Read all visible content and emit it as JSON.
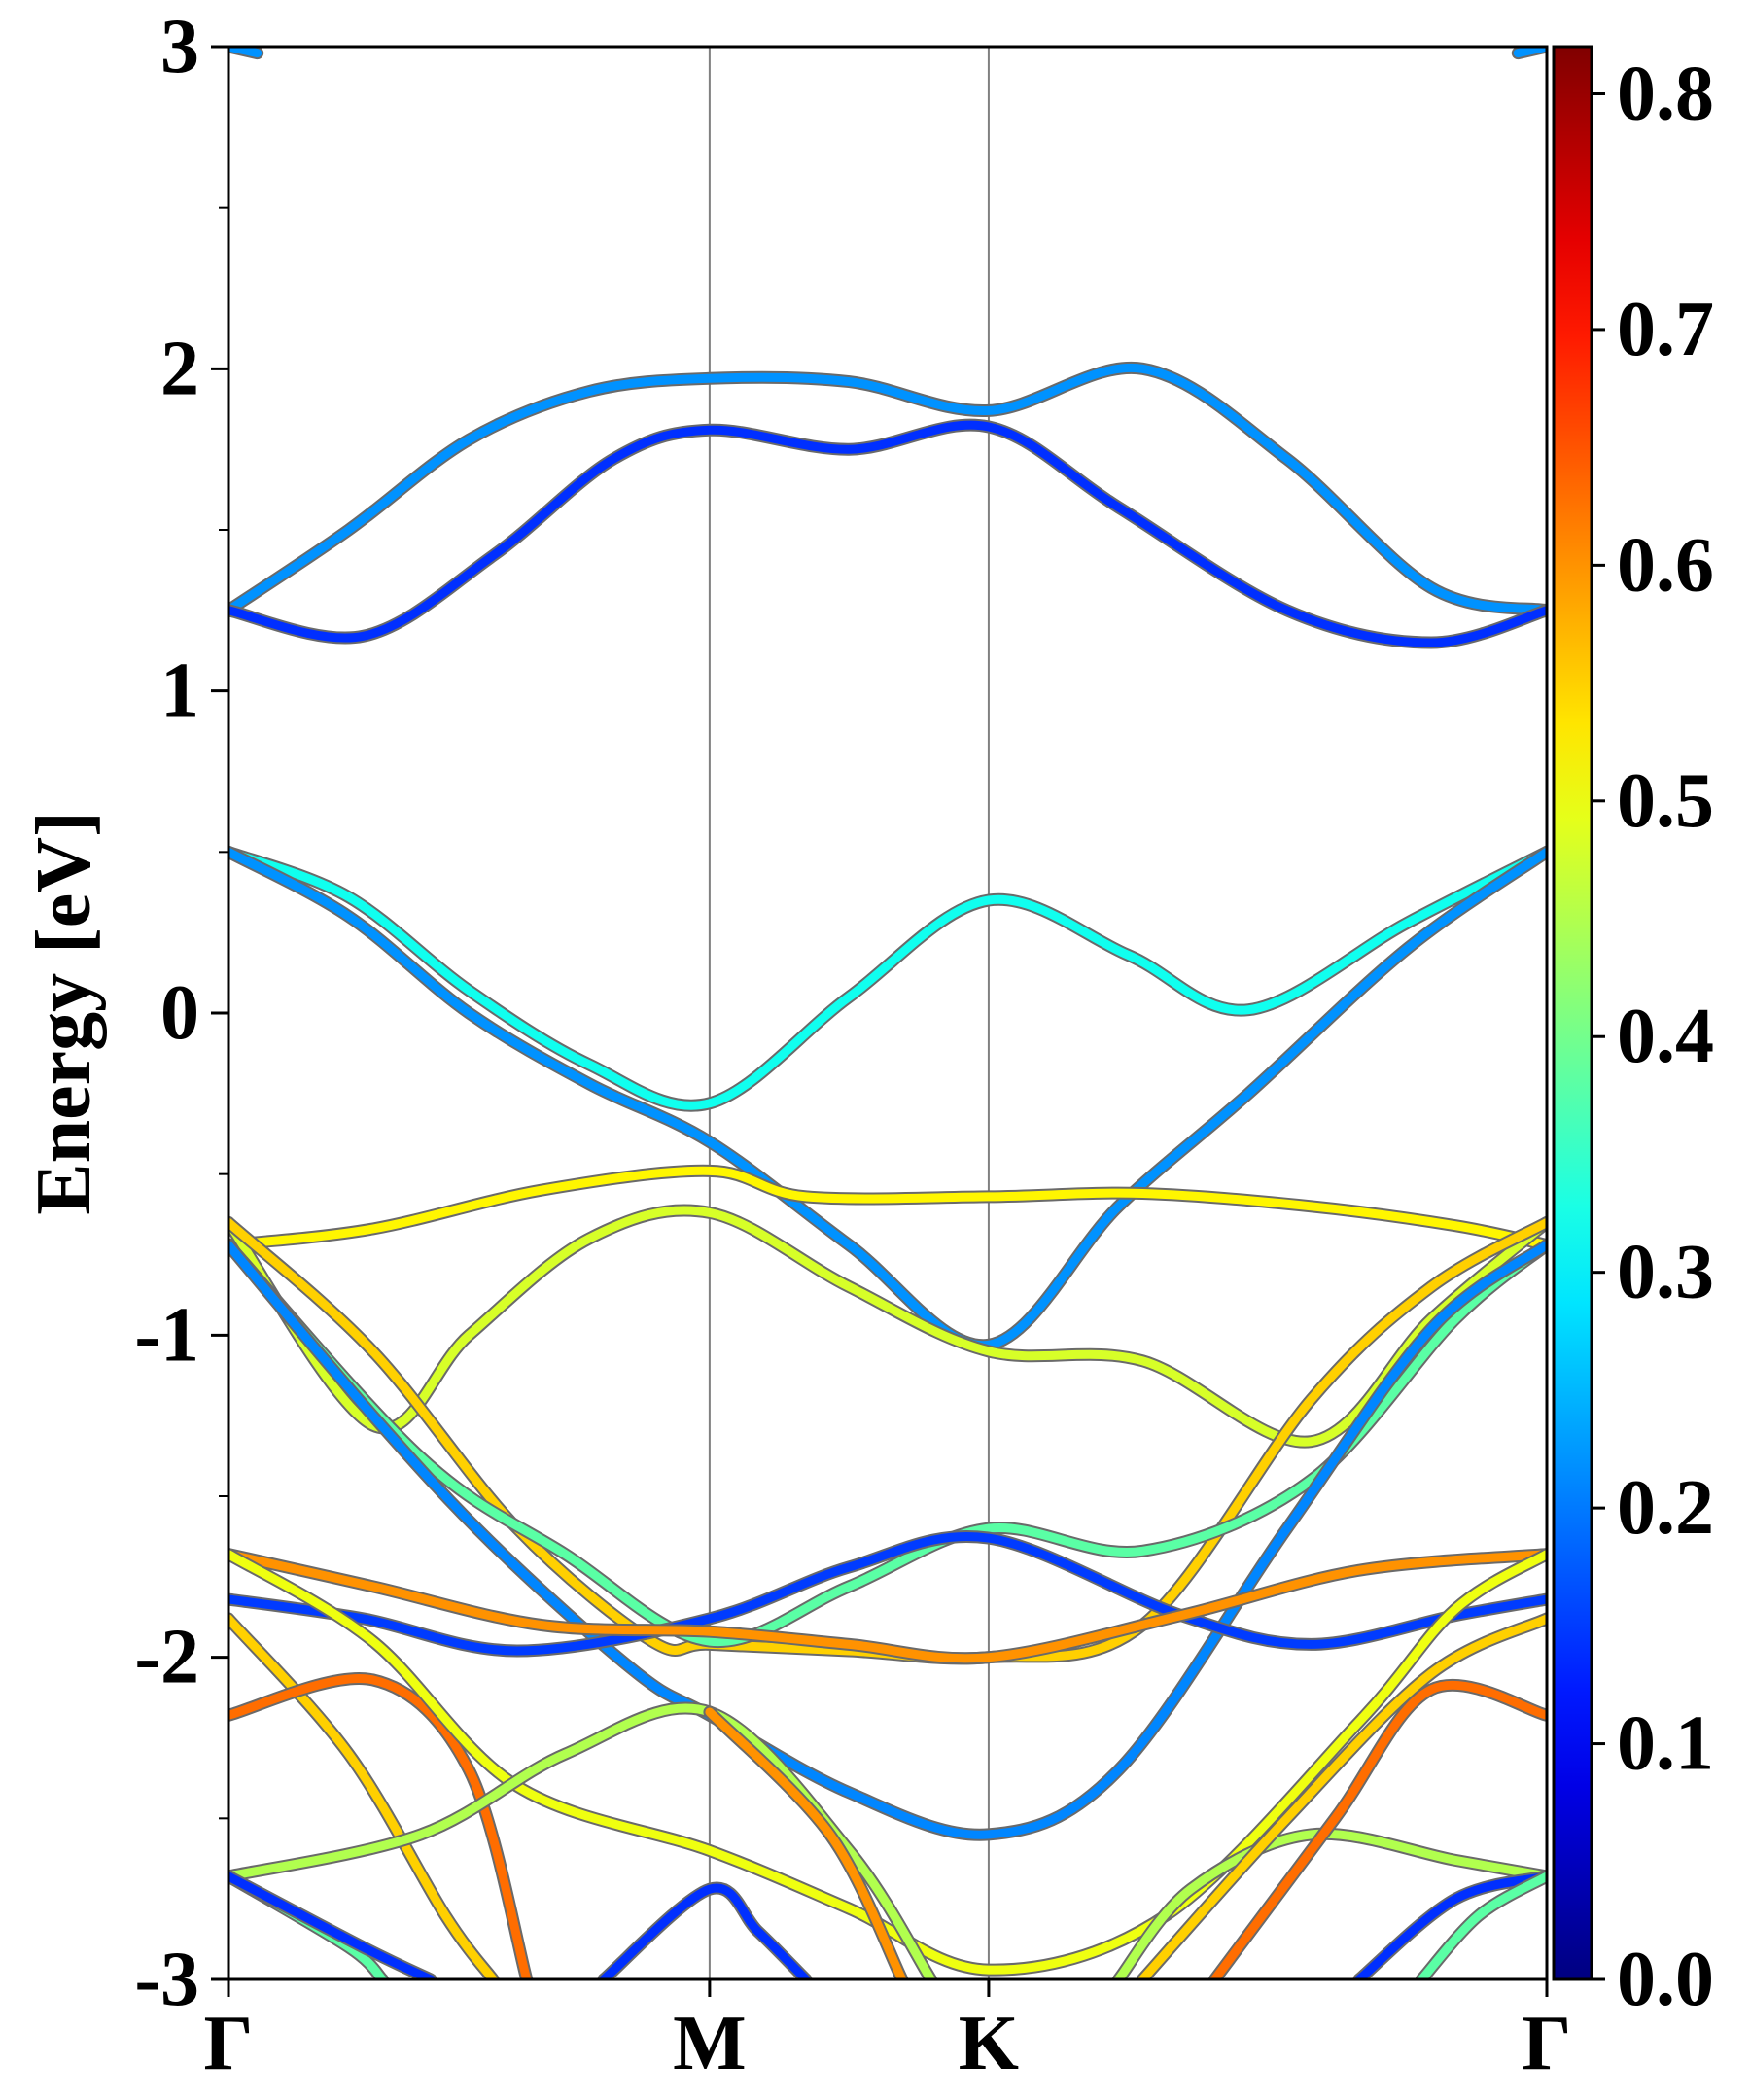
{
  "chart_data": {
    "type": "line",
    "ylabel": "Energy [eV]",
    "xlabel": "",
    "title": "",
    "ylim": [
      -3,
      3
    ],
    "yticks": [
      3,
      2,
      1,
      0,
      -1,
      -2,
      -3
    ],
    "kpoints": [
      {
        "label": "Γ",
        "x": 0.0
      },
      {
        "label": "M",
        "x": 1.0
      },
      {
        "label": "K",
        "x": 1.58
      },
      {
        "label": "Γ",
        "x": 2.74
      }
    ],
    "colorbar": {
      "min": 0.0,
      "max": 0.82,
      "ticks": [
        0.0,
        0.1,
        0.2,
        0.3,
        0.4,
        0.5,
        0.6,
        0.7,
        0.8
      ],
      "tick_labels": [
        "0.0",
        "0.1",
        "0.2",
        "0.3",
        "0.4",
        "0.5",
        "0.6",
        "0.7",
        "0.8"
      ],
      "colormap": "jet"
    },
    "series": [
      {
        "weight": 0.22,
        "points": [
          [
            0,
            1.25
          ],
          [
            0.25,
            1.5
          ],
          [
            0.5,
            1.78
          ],
          [
            0.75,
            1.93
          ],
          [
            1.0,
            1.97
          ],
          [
            1.29,
            1.96
          ],
          [
            1.58,
            1.87
          ],
          [
            1.9,
            2.0
          ],
          [
            2.2,
            1.72
          ],
          [
            2.5,
            1.32
          ],
          [
            2.74,
            1.25
          ]
        ]
      },
      {
        "weight": 0.14,
        "points": [
          [
            0,
            1.25
          ],
          [
            0.28,
            1.17
          ],
          [
            0.55,
            1.42
          ],
          [
            0.8,
            1.72
          ],
          [
            1.0,
            1.81
          ],
          [
            1.29,
            1.75
          ],
          [
            1.58,
            1.82
          ],
          [
            1.85,
            1.57
          ],
          [
            2.2,
            1.25
          ],
          [
            2.5,
            1.15
          ],
          [
            2.74,
            1.25
          ]
        ]
      },
      {
        "weight": 0.32,
        "points": [
          [
            0,
            0.5
          ],
          [
            0.25,
            0.36
          ],
          [
            0.5,
            0.07
          ],
          [
            0.75,
            -0.16
          ],
          [
            1.0,
            -0.28
          ],
          [
            1.29,
            0.05
          ],
          [
            1.58,
            0.35
          ],
          [
            1.87,
            0.18
          ],
          [
            2.12,
            0.01
          ],
          [
            2.45,
            0.28
          ],
          [
            2.74,
            0.5
          ]
        ]
      },
      {
        "weight": 0.22,
        "points": [
          [
            0,
            0.5
          ],
          [
            0.25,
            0.3
          ],
          [
            0.5,
            0.0
          ],
          [
            0.75,
            -0.22
          ],
          [
            1.0,
            -0.4
          ],
          [
            1.29,
            -0.72
          ],
          [
            1.58,
            -1.03
          ],
          [
            1.85,
            -0.6
          ],
          [
            2.12,
            -0.25
          ],
          [
            2.45,
            0.2
          ],
          [
            2.74,
            0.5
          ]
        ]
      },
      {
        "weight": 0.52,
        "points": [
          [
            0,
            -0.72
          ],
          [
            0.3,
            -0.67
          ],
          [
            0.65,
            -0.55
          ],
          [
            1.0,
            -0.49
          ],
          [
            1.2,
            -0.57
          ],
          [
            1.58,
            -0.57
          ],
          [
            1.9,
            -0.56
          ],
          [
            2.25,
            -0.6
          ],
          [
            2.55,
            -0.66
          ],
          [
            2.74,
            -0.72
          ]
        ]
      },
      {
        "weight": 0.48,
        "points": [
          [
            0,
            -0.65
          ],
          [
            0.3,
            -1.28
          ],
          [
            0.5,
            -1.0
          ],
          [
            0.75,
            -0.7
          ],
          [
            1.0,
            -0.62
          ],
          [
            1.29,
            -0.85
          ],
          [
            1.58,
            -1.05
          ],
          [
            1.9,
            -1.08
          ],
          [
            2.25,
            -1.33
          ],
          [
            2.5,
            -0.95
          ],
          [
            2.74,
            -0.65
          ]
        ]
      },
      {
        "weight": 0.55,
        "points": [
          [
            0,
            -0.65
          ],
          [
            0.3,
            -1.05
          ],
          [
            0.6,
            -1.6
          ],
          [
            0.88,
            -1.95
          ],
          [
            1.0,
            -1.96
          ],
          [
            1.29,
            -1.98
          ],
          [
            1.58,
            -2.0
          ],
          [
            1.9,
            -1.9
          ],
          [
            2.25,
            -1.2
          ],
          [
            2.5,
            -0.85
          ],
          [
            2.74,
            -0.65
          ]
        ]
      },
      {
        "weight": 0.38,
        "points": [
          [
            0,
            -0.72
          ],
          [
            0.4,
            -1.38
          ],
          [
            0.7,
            -1.68
          ],
          [
            1.0,
            -1.95
          ],
          [
            1.29,
            -1.78
          ],
          [
            1.58,
            -1.6
          ],
          [
            1.9,
            -1.67
          ],
          [
            2.25,
            -1.45
          ],
          [
            2.55,
            -0.95
          ],
          [
            2.74,
            -0.72
          ]
        ]
      },
      {
        "weight": 0.21,
        "points": [
          [
            0,
            -0.72
          ],
          [
            0.3,
            -1.25
          ],
          [
            0.55,
            -1.65
          ],
          [
            0.85,
            -2.05
          ],
          [
            1.0,
            -2.18
          ],
          [
            1.29,
            -2.42
          ],
          [
            1.58,
            -2.55
          ],
          [
            1.85,
            -2.35
          ],
          [
            2.2,
            -1.6
          ],
          [
            2.5,
            -0.98
          ],
          [
            2.74,
            -0.72
          ]
        ]
      },
      {
        "weight": 0.15,
        "points": [
          [
            0,
            -1.82
          ],
          [
            0.28,
            -1.88
          ],
          [
            0.6,
            -1.98
          ],
          [
            1.0,
            -1.88
          ],
          [
            1.29,
            -1.72
          ],
          [
            1.58,
            -1.63
          ],
          [
            1.98,
            -1.87
          ],
          [
            2.25,
            -1.96
          ],
          [
            2.55,
            -1.87
          ],
          [
            2.74,
            -1.82
          ]
        ]
      },
      {
        "weight": 0.6,
        "points": [
          [
            0,
            -1.68
          ],
          [
            0.3,
            -1.78
          ],
          [
            0.65,
            -1.9
          ],
          [
            1.0,
            -1.92
          ],
          [
            1.29,
            -1.96
          ],
          [
            1.58,
            -2.0
          ],
          [
            1.98,
            -1.87
          ],
          [
            2.35,
            -1.73
          ],
          [
            2.74,
            -1.68
          ]
        ]
      },
      {
        "weight": 0.55,
        "points": [
          [
            0,
            -1.88
          ],
          [
            0.25,
            -2.3
          ],
          [
            0.45,
            -2.8
          ],
          [
            0.55,
            -3.0
          ]
        ]
      },
      {
        "weight": 0.63,
        "points": [
          [
            0,
            -2.18
          ],
          [
            0.3,
            -2.07
          ],
          [
            0.5,
            -2.35
          ],
          [
            0.62,
            -3.0
          ]
        ]
      },
      {
        "weight": 0.5,
        "points": [
          [
            0,
            -1.68
          ],
          [
            0.3,
            -1.95
          ],
          [
            0.6,
            -2.4
          ],
          [
            1.0,
            -2.6
          ],
          [
            1.29,
            -2.78
          ],
          [
            1.58,
            -2.97
          ],
          [
            1.95,
            -2.8
          ],
          [
            2.35,
            -2.2
          ],
          [
            2.55,
            -1.85
          ],
          [
            2.74,
            -1.68
          ]
        ]
      },
      {
        "weight": 0.45,
        "points": [
          [
            0,
            -2.68
          ],
          [
            0.4,
            -2.55
          ],
          [
            0.7,
            -2.3
          ],
          [
            1.0,
            -2.17
          ],
          [
            1.29,
            -2.6
          ],
          [
            1.46,
            -3.0
          ]
        ]
      },
      {
        "weight": 0.6,
        "points": [
          [
            1.0,
            -2.17
          ],
          [
            1.25,
            -2.55
          ],
          [
            1.4,
            -3.0
          ]
        ]
      },
      {
        "weight": 0.38,
        "points": [
          [
            0,
            -2.68
          ],
          [
            0.25,
            -2.9
          ],
          [
            0.32,
            -3.0
          ]
        ]
      },
      {
        "weight": 0.14,
        "points": [
          [
            0,
            -2.68
          ],
          [
            0.28,
            -2.9
          ],
          [
            0.42,
            -3.0
          ]
        ]
      },
      {
        "weight": 0.14,
        "points": [
          [
            0.78,
            -3.0
          ],
          [
            1.0,
            -2.72
          ],
          [
            1.1,
            -2.85
          ],
          [
            1.2,
            -3.0
          ]
        ]
      },
      {
        "weight": 0.45,
        "points": [
          [
            1.85,
            -3.0
          ],
          [
            2.0,
            -2.72
          ],
          [
            2.25,
            -2.55
          ],
          [
            2.55,
            -2.63
          ],
          [
            2.74,
            -2.68
          ]
        ]
      },
      {
        "weight": 0.55,
        "points": [
          [
            1.9,
            -3.0
          ],
          [
            2.2,
            -2.5
          ],
          [
            2.5,
            -2.05
          ],
          [
            2.74,
            -1.88
          ]
        ]
      },
      {
        "weight": 0.63,
        "points": [
          [
            2.05,
            -3.0
          ],
          [
            2.3,
            -2.5
          ],
          [
            2.5,
            -2.1
          ],
          [
            2.74,
            -2.18
          ]
        ]
      },
      {
        "weight": 0.14,
        "points": [
          [
            2.35,
            -3.0
          ],
          [
            2.55,
            -2.75
          ],
          [
            2.74,
            -2.68
          ]
        ]
      },
      {
        "weight": 0.38,
        "points": [
          [
            2.48,
            -3.0
          ],
          [
            2.6,
            -2.8
          ],
          [
            2.74,
            -2.68
          ]
        ]
      },
      {
        "weight": 0.22,
        "points": [
          [
            0,
            3.0
          ],
          [
            0.06,
            2.98
          ]
        ]
      },
      {
        "weight": 0.22,
        "points": [
          [
            2.68,
            2.98
          ],
          [
            2.74,
            3.0
          ]
        ]
      }
    ]
  }
}
